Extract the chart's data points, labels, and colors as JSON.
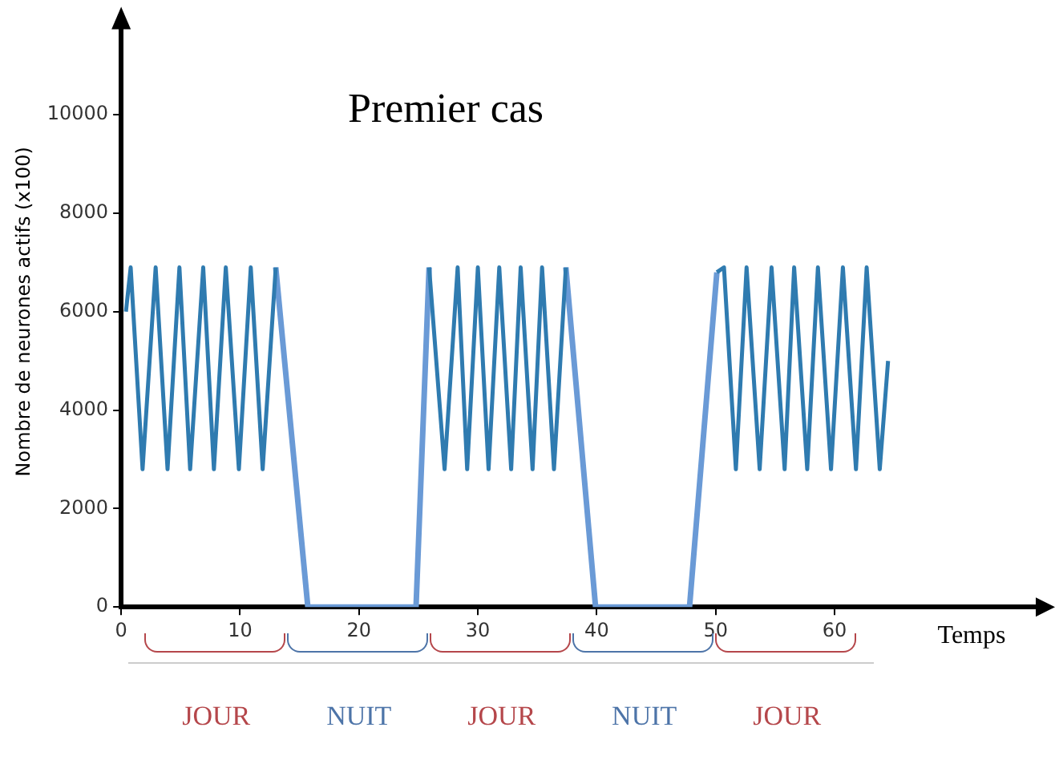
{
  "chart_data": {
    "type": "line",
    "title": "Premier cas",
    "xlabel": "Temps",
    "ylabel": "Nombre de neurones actifs (x100)",
    "xlim": [
      0,
      78
    ],
    "xticks": [
      0,
      10,
      20,
      30,
      40,
      50,
      60
    ],
    "ylim": [
      0,
      12000
    ],
    "yticks": [
      0,
      2000,
      4000,
      6000,
      8000,
      10000
    ],
    "grid": false,
    "legend": false,
    "marker": "none",
    "series": [
      {
        "color": "#2f7bb0",
        "x": [
          0.4,
          0.8,
          1.8,
          2.9,
          3.9,
          4.9,
          5.8,
          6.9,
          7.8,
          8.8,
          9.9,
          10.9,
          11.9,
          13.0,
          14,
          25.9,
          27.2,
          28.3,
          29.1,
          30.0,
          30.9,
          31.8,
          32.8,
          33.6,
          34.6,
          35.4,
          36.4,
          37.4,
          45,
          50.1,
          50.7,
          51.7,
          52.6,
          53.7,
          54.7,
          55.8,
          56.6,
          57.7,
          58.6,
          59.7,
          60.7,
          61.8,
          62.7,
          63.8,
          64.5
        ],
        "values": [
          6000,
          6900,
          2800,
          6900,
          2800,
          6900,
          2800,
          6900,
          2800,
          6900,
          2800,
          6900,
          2800,
          6900,
          null,
          6900,
          2800,
          6900,
          2800,
          6900,
          2800,
          6900,
          2800,
          6900,
          2800,
          6900,
          2800,
          6900,
          null,
          6800,
          6900,
          2800,
          6900,
          2800,
          6900,
          2800,
          6900,
          2800,
          6900,
          2800,
          6900,
          2800,
          6900,
          2800,
          5000
        ]
      },
      {
        "color": "#6a9ad6",
        "x": [
          13.0,
          15.7,
          24.8,
          25.9,
          30,
          37.4,
          39.9,
          47.8,
          50.1
        ],
        "values": [
          6900,
          0,
          0,
          6900,
          null,
          6900,
          0,
          0,
          6800
        ]
      }
    ],
    "annotations": [
      "JOUR",
      "NUIT",
      "JOUR",
      "NUIT",
      "JOUR"
    ]
  }
}
